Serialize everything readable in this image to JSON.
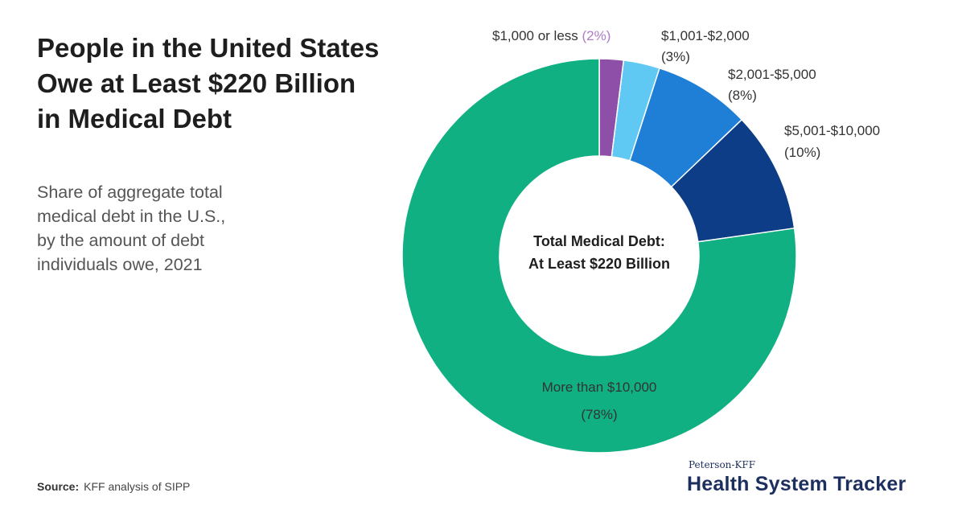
{
  "header": {
    "title_lines": [
      "People in the United States",
      "Owe at Least $220 Billion",
      "in Medical Debt"
    ],
    "subtitle_lines": [
      "Share of aggregate total",
      "medical debt in the U.S.,",
      "by the amount of debt",
      "individuals owe, 2021"
    ]
  },
  "footer": {
    "source_label": "Source:",
    "source_text": "KFF analysis of SIPP",
    "brand_small": "Peterson-KFF",
    "brand_large": "Health System Tracker"
  },
  "chart_data": {
    "type": "pie",
    "donut": true,
    "center_label": [
      "Total Medical Debt:",
      "At Least $220 Billion"
    ],
    "slices": [
      {
        "label": "$1,000 or less",
        "value": 2,
        "display": "(2%)",
        "color": "#8e4fa8",
        "pct_color": "#b07cc6"
      },
      {
        "label": "$1,001-$2,000",
        "value": 3,
        "display": "(3%)",
        "color": "#5fc8f3",
        "pct_color": "#5fc8f3"
      },
      {
        "label": "$2,001-$5,000",
        "value": 8,
        "display": "(8%)",
        "color": "#1f7fd6",
        "pct_color": "#1f7fd6"
      },
      {
        "label": "$5,001-$10,000",
        "value": 10,
        "display": "(10%)",
        "color": "#0d3d86",
        "pct_color": "#0d3d86"
      },
      {
        "label": "More than $10,000",
        "value": 78,
        "display": "(78%)",
        "color": "#10b083",
        "pct_color": "#ffffff"
      }
    ]
  }
}
